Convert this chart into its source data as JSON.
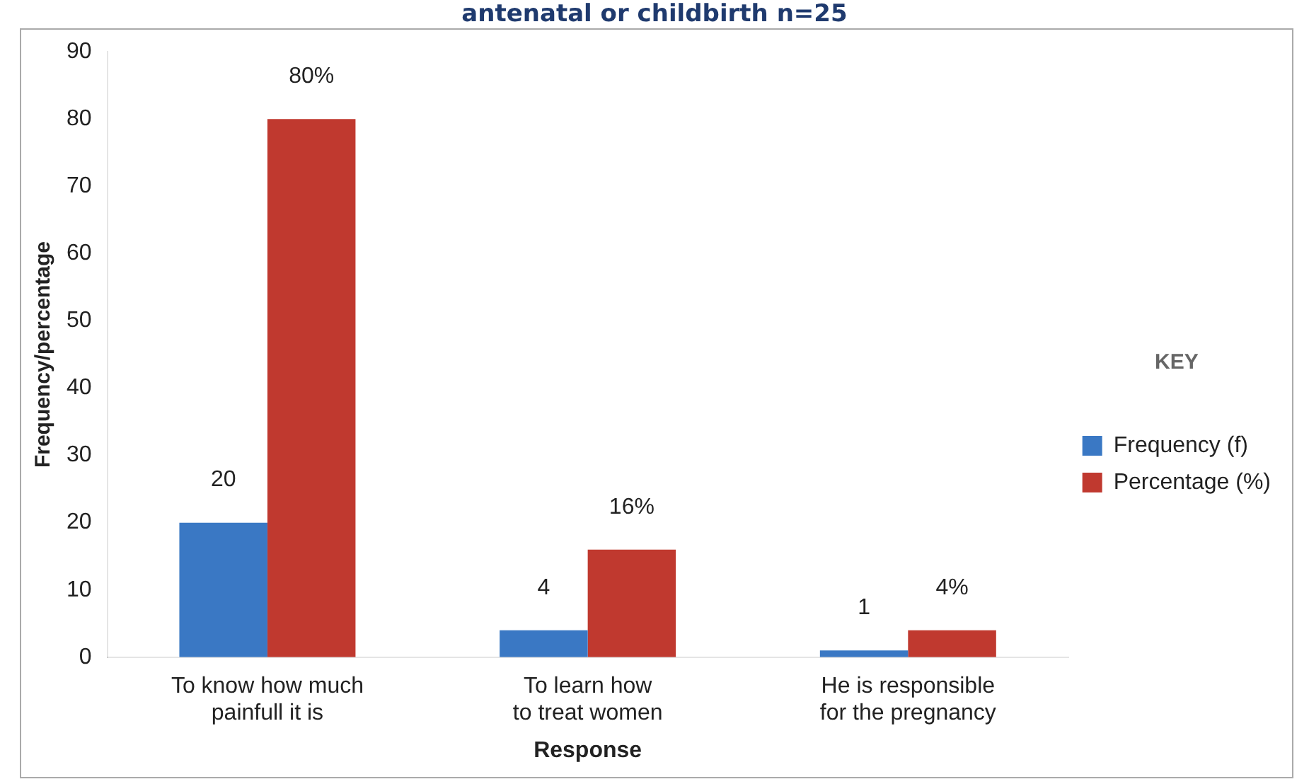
{
  "chart_data": {
    "type": "bar",
    "title": "antenatal or childbirth n=25",
    "xlabel": "Response",
    "ylabel": "Frequency/percentage",
    "legend_title": "KEY",
    "legend": "right",
    "grid": false,
    "categories": [
      "To know how much painfull it is",
      "To learn how to treat women",
      "He is responsible for the pregnancy"
    ],
    "ylim": [
      0,
      90
    ],
    "yticks": [
      0,
      10,
      20,
      30,
      40,
      50,
      60,
      70,
      80,
      90
    ],
    "series": [
      {
        "name": "Frequency (f)",
        "color": "#3a78c4",
        "values": [
          20,
          4,
          1
        ],
        "value_labels": [
          "20",
          "4",
          "1"
        ]
      },
      {
        "name": "Percentage (%)",
        "color": "#c0392f",
        "values": [
          80,
          16,
          4
        ],
        "value_labels": [
          "80%",
          "16%",
          "4%"
        ]
      }
    ]
  }
}
